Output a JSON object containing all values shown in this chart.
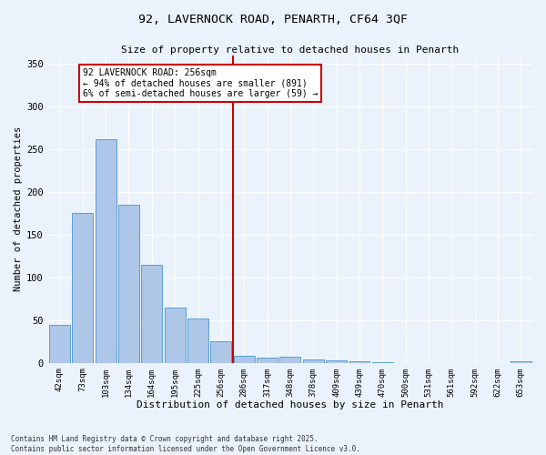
{
  "title1": "92, LAVERNOCK ROAD, PENARTH, CF64 3QF",
  "title2": "Size of property relative to detached houses in Penarth",
  "xlabel": "Distribution of detached houses by size in Penarth",
  "ylabel": "Number of detached properties",
  "categories": [
    "42sqm",
    "73sqm",
    "103sqm",
    "134sqm",
    "164sqm",
    "195sqm",
    "225sqm",
    "256sqm",
    "286sqm",
    "317sqm",
    "348sqm",
    "378sqm",
    "409sqm",
    "439sqm",
    "470sqm",
    "500sqm",
    "531sqm",
    "561sqm",
    "592sqm",
    "622sqm",
    "653sqm"
  ],
  "values": [
    44,
    176,
    262,
    185,
    115,
    65,
    52,
    25,
    8,
    6,
    7,
    4,
    3,
    2,
    1,
    0,
    0,
    0,
    0,
    0,
    2
  ],
  "bar_color": "#aec6e8",
  "bar_edge_color": "#5a9fd4",
  "vline_x": 7.5,
  "vline_color": "#cc0000",
  "annotation_text": "92 LAVERNOCK ROAD: 256sqm\n← 94% of detached houses are smaller (891)\n6% of semi-detached houses are larger (59) →",
  "annotation_box_color": "#ffffff",
  "annotation_box_edge": "#cc0000",
  "footer1": "Contains HM Land Registry data © Crown copyright and database right 2025.",
  "footer2": "Contains public sector information licensed under the Open Government Licence v3.0.",
  "ylim": [
    0,
    360
  ],
  "yticks": [
    0,
    50,
    100,
    150,
    200,
    250,
    300,
    350
  ],
  "bg_color": "#eaf3fb",
  "grid_color": "#ffffff",
  "font_family": "monospace",
  "figsize": [
    6.0,
    5.0
  ],
  "dpi": 100
}
